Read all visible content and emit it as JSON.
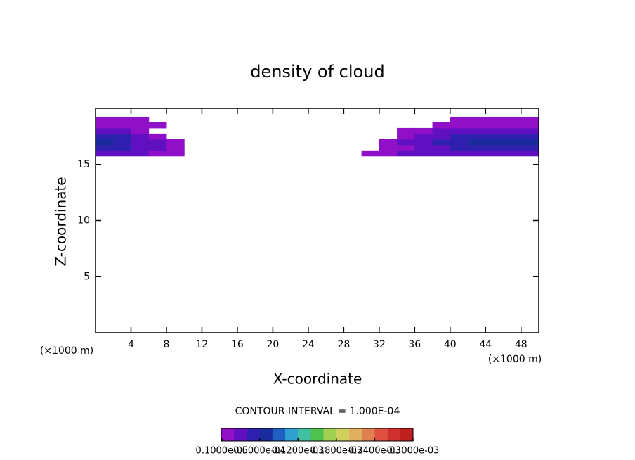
{
  "chart_data": {
    "type": "contour",
    "title": "density of cloud",
    "x_label": "X-coordinate",
    "y_label": "Z-coordinate",
    "x_unit": "(×1000 m)",
    "y_unit": "(×1000 m)",
    "annotation": "CONTOUR INTERVAL = 1.000E-04",
    "xlim": [
      0,
      50
    ],
    "ylim": [
      0,
      20
    ],
    "xticks": [
      4,
      8,
      12,
      16,
      20,
      24,
      28,
      32,
      36,
      40,
      44,
      48
    ],
    "yticks": [
      5,
      10,
      15
    ],
    "x": [
      1,
      3,
      5,
      7,
      9,
      11,
      13,
      15,
      17,
      19,
      21,
      23,
      25,
      27,
      29,
      31,
      33,
      35,
      37,
      39,
      41,
      43,
      45,
      47,
      49
    ],
    "z": [
      16,
      16.5,
      17,
      17.5,
      18,
      18.5,
      19
    ],
    "values": [
      [
        3e-05,
        3e-05,
        2e-05,
        1e-05,
        1e-05,
        0,
        0,
        0,
        0,
        0,
        0,
        0,
        0,
        0,
        0,
        1e-05,
        1e-05,
        2e-05,
        2e-05,
        3e-05,
        3e-05,
        3e-05,
        3e-05,
        3e-05,
        3e-05
      ],
      [
        5e-05,
        5e-05,
        3e-05,
        3e-05,
        1e-05,
        0,
        0,
        0,
        0,
        0,
        0,
        0,
        0,
        0,
        0,
        0,
        1e-05,
        1e-05,
        3e-05,
        3e-05,
        5e-05,
        5e-05,
        5e-05,
        5e-05,
        5e-05
      ],
      [
        7e-05,
        5e-05,
        3e-05,
        3e-05,
        1e-05,
        0,
        0,
        0,
        0,
        0,
        0,
        0,
        0,
        0,
        0,
        0,
        1e-05,
        3e-05,
        3e-05,
        5e-05,
        5e-05,
        7e-05,
        7e-05,
        7e-05,
        7e-05
      ],
      [
        5e-05,
        5e-05,
        3e-05,
        1e-05,
        0,
        0,
        0,
        0,
        0,
        0,
        0,
        0,
        0,
        0,
        0,
        0,
        0,
        1e-05,
        3e-05,
        3e-05,
        5e-05,
        5e-05,
        5e-05,
        5e-05,
        5e-05
      ],
      [
        3e-05,
        3e-05,
        1e-05,
        0,
        0,
        0,
        0,
        0,
        0,
        0,
        0,
        0,
        0,
        0,
        0,
        0,
        0,
        1e-05,
        1e-05,
        3e-05,
        3e-05,
        3e-05,
        3e-05,
        3e-05,
        3e-05
      ],
      [
        1e-05,
        1e-05,
        1e-05,
        1e-05,
        0,
        0,
        0,
        0,
        0,
        0,
        0,
        0,
        0,
        0,
        0,
        0,
        0,
        0,
        0,
        1e-05,
        1e-05,
        1e-05,
        1e-05,
        1e-05,
        1e-05
      ],
      [
        1e-05,
        1e-05,
        1e-05,
        0,
        0,
        0,
        0,
        0,
        0,
        0,
        0,
        0,
        0,
        0,
        0,
        0,
        0,
        0,
        0,
        0,
        1e-05,
        1e-05,
        1e-05,
        1e-05,
        1e-05
      ]
    ],
    "colorbar": {
      "lim": [
        0,
        0.0003
      ],
      "colors": [
        "#9010c8",
        "#6010c0",
        "#3020b0",
        "#1a2c9c",
        "#2060c0",
        "#30a0d0",
        "#40c0a0",
        "#50c050",
        "#a0d050",
        "#d0d060",
        "#e0b060",
        "#e08050",
        "#e05040",
        "#d03030",
        "#c02020"
      ],
      "ticks": [
        {
          "value": 1e-06,
          "label": "0.1000e-05"
        },
        {
          "value": 6e-05,
          "label": "0.6000e-04"
        },
        {
          "value": 0.00012,
          "label": "0.1200e-03"
        },
        {
          "value": 0.00018,
          "label": "0.1800e-03"
        },
        {
          "value": 0.00024,
          "label": "0.2400e-03"
        },
        {
          "value": 0.0003,
          "label": "0.3000e-03"
        }
      ]
    }
  }
}
